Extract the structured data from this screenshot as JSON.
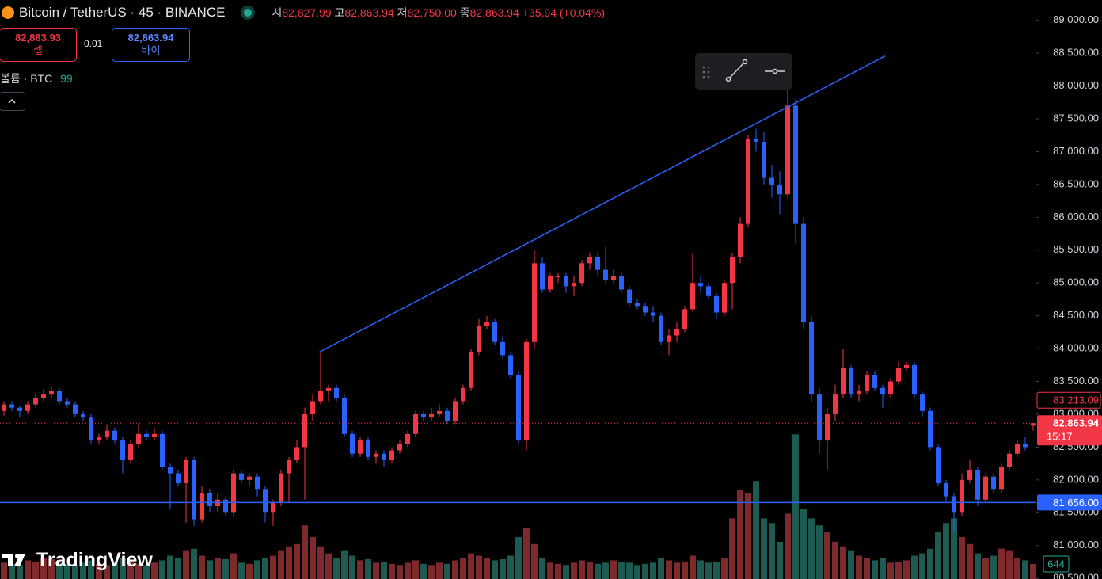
{
  "header": {
    "symbol": "Bitcoin / TetherUS · 45 · BINANCE",
    "open_label": "시",
    "open": "82,827.99",
    "high_label": "고",
    "high": "82,863.94",
    "low_label": "저",
    "low": "82,750.00",
    "close_label": "종",
    "close": "82,863.94",
    "change": "+35.94 (+0.04%)",
    "sell_price": "82,863.93",
    "sell_label": "셀",
    "spread": "0.01",
    "buy_price": "82,863.94",
    "buy_label": "바이",
    "volume_label": "볼륨 · BTC",
    "volume_length": "99",
    "logo": "TradingView"
  },
  "chart_data": {
    "type": "candlestick",
    "up_color": "#f23645",
    "down_color": "#2962ff",
    "volume_up_color": "#7e2a2c",
    "volume_down_color": "#1d5a52",
    "xlim": [
      -0.5,
      130.3
    ],
    "ylim": [
      80490,
      89310
    ],
    "volume_lim": [
      0,
      24800
    ],
    "yticks": [
      {
        "value": 80500,
        "label": "80,500.00"
      },
      {
        "value": 81000,
        "label": "81,000.00"
      },
      {
        "value": 81500,
        "label": "81,500.00"
      },
      {
        "value": 82000,
        "label": "82,000.00"
      },
      {
        "value": 82500,
        "label": "82,500.00"
      },
      {
        "value": 83000,
        "label": "83,000.00"
      },
      {
        "value": 83500,
        "label": "83,500.00"
      },
      {
        "value": 84000,
        "label": "84,000.00"
      },
      {
        "value": 84500,
        "label": "84,500.00"
      },
      {
        "value": 85000,
        "label": "85,000.00"
      },
      {
        "value": 85500,
        "label": "85,500.00"
      },
      {
        "value": 86000,
        "label": "86,000.00"
      },
      {
        "value": 86500,
        "label": "86,500.00"
      },
      {
        "value": 87000,
        "label": "87,000.00"
      },
      {
        "value": 87500,
        "label": "87,500.00"
      },
      {
        "value": 88000,
        "label": "88,000.00"
      },
      {
        "value": 88500,
        "label": "88,500.00"
      },
      {
        "value": 89000,
        "label": "89,000.00"
      }
    ],
    "horizontal_line": {
      "value": 81656,
      "label": "81,656.00",
      "color": "#2962ff"
    },
    "trendline": {
      "x": [
        39.8,
        111.3
      ],
      "y": [
        83944,
        88457
      ],
      "color": "#2962ff"
    },
    "price_marker": {
      "value": 83213.09,
      "label": "83,213.09"
    },
    "last_price": {
      "value": 82863.94,
      "label": "82,863.94",
      "countdown": "15:17"
    },
    "ohlc": [
      [
        83050,
        83200,
        82980,
        83150
      ],
      [
        83150,
        83200,
        83050,
        83100
      ],
      [
        83100,
        83120,
        82950,
        83050
      ],
      [
        83050,
        83200,
        83000,
        83150
      ],
      [
        83150,
        83300,
        83100,
        83250
      ],
      [
        83250,
        83380,
        83200,
        83300
      ],
      [
        83300,
        83420,
        83250,
        83350
      ],
      [
        83350,
        83400,
        83150,
        83200
      ],
      [
        83200,
        83250,
        83100,
        83150
      ],
      [
        83150,
        83200,
        82950,
        83000
      ],
      [
        83000,
        83050,
        82900,
        82950
      ],
      [
        82950,
        83000,
        82550,
        82600
      ],
      [
        82600,
        82700,
        82550,
        82650
      ],
      [
        82650,
        82850,
        82600,
        82750
      ],
      [
        82750,
        82800,
        82550,
        82600
      ],
      [
        82600,
        82650,
        82100,
        82300
      ],
      [
        82300,
        82600,
        82250,
        82550
      ],
      [
        82550,
        82850,
        82500,
        82700
      ],
      [
        82700,
        82750,
        82600,
        82650
      ],
      [
        82650,
        82800,
        82600,
        82700
      ],
      [
        82700,
        82750,
        82150,
        82200
      ],
      [
        82200,
        82250,
        81550,
        82100
      ],
      [
        82100,
        82150,
        81900,
        81950
      ],
      [
        81950,
        82350,
        81350,
        82300
      ],
      [
        82300,
        82350,
        81300,
        81400
      ],
      [
        81400,
        81900,
        81350,
        81800
      ],
      [
        81800,
        81850,
        81500,
        81600
      ],
      [
        81600,
        81800,
        81500,
        81700
      ],
      [
        81700,
        81750,
        81450,
        81500
      ],
      [
        81500,
        82150,
        81450,
        82100
      ],
      [
        82100,
        82150,
        81950,
        82000
      ],
      [
        82000,
        82100,
        81900,
        82050
      ],
      [
        82050,
        82100,
        81750,
        81850
      ],
      [
        81850,
        81900,
        81350,
        81500
      ],
      [
        81500,
        81700,
        81300,
        81650
      ],
      [
        81650,
        82150,
        81600,
        82100
      ],
      [
        82100,
        82350,
        81650,
        82300
      ],
      [
        82300,
        82600,
        82250,
        82500
      ],
      [
        82500,
        83100,
        81700,
        83000
      ],
      [
        83000,
        83300,
        82900,
        83200
      ],
      [
        83200,
        83950,
        83150,
        83350
      ],
      [
        83350,
        83450,
        83200,
        83400
      ],
      [
        83400,
        83450,
        83200,
        83250
      ],
      [
        83250,
        83300,
        82650,
        82700
      ],
      [
        82700,
        82750,
        82350,
        82400
      ],
      [
        82400,
        82650,
        82350,
        82600
      ],
      [
        82600,
        82650,
        82300,
        82350
      ],
      [
        82350,
        82450,
        82250,
        82400
      ],
      [
        82400,
        82450,
        82200,
        82300
      ],
      [
        82300,
        82500,
        82250,
        82450
      ],
      [
        82450,
        82600,
        82400,
        82550
      ],
      [
        82550,
        82750,
        82500,
        82700
      ],
      [
        82700,
        83050,
        82650,
        83000
      ],
      [
        83000,
        83050,
        82900,
        82950
      ],
      [
        82950,
        83100,
        82900,
        83000
      ],
      [
        83000,
        83150,
        82950,
        83050
      ],
      [
        83050,
        83100,
        82850,
        82900
      ],
      [
        82900,
        83250,
        82850,
        83200
      ],
      [
        83200,
        83450,
        83150,
        83400
      ],
      [
        83400,
        84000,
        83350,
        83950
      ],
      [
        83950,
        84450,
        83900,
        84350
      ],
      [
        84350,
        84500,
        84300,
        84400
      ],
      [
        84400,
        84450,
        84050,
        84100
      ],
      [
        84100,
        84200,
        83850,
        83900
      ],
      [
        83900,
        83950,
        83550,
        83600
      ],
      [
        83600,
        83650,
        82550,
        82600
      ],
      [
        82600,
        84150,
        82450,
        84100
      ],
      [
        84100,
        85500,
        84000,
        85300
      ],
      [
        85300,
        85400,
        84850,
        84900
      ],
      [
        84900,
        85150,
        84850,
        85100
      ],
      [
        85100,
        85150,
        85000,
        85100
      ],
      [
        85100,
        85150,
        84850,
        84950
      ],
      [
        84950,
        85100,
        84800,
        85000
      ],
      [
        85000,
        85350,
        84950,
        85300
      ],
      [
        85300,
        85450,
        85200,
        85400
      ],
      [
        85400,
        85450,
        85100,
        85200
      ],
      [
        85200,
        85550,
        85000,
        85050
      ],
      [
        85050,
        85200,
        85000,
        85100
      ],
      [
        85100,
        85150,
        84850,
        84900
      ],
      [
        84900,
        84950,
        84650,
        84700
      ],
      [
        84700,
        84750,
        84600,
        84650
      ],
      [
        84650,
        84700,
        84500,
        84550
      ],
      [
        84550,
        84650,
        84400,
        84500
      ],
      [
        84500,
        84550,
        84050,
        84100
      ],
      [
        84100,
        84300,
        83900,
        84200
      ],
      [
        84200,
        84400,
        84100,
        84300
      ],
      [
        84300,
        84650,
        84250,
        84600
      ],
      [
        84600,
        85450,
        84550,
        85000
      ],
      [
        85000,
        85100,
        84850,
        84950
      ],
      [
        84950,
        85000,
        84750,
        84800
      ],
      [
        84800,
        84850,
        84450,
        84550
      ],
      [
        84550,
        85050,
        84500,
        85000
      ],
      [
        85000,
        85450,
        84600,
        85400
      ],
      [
        85400,
        86000,
        85300,
        85900
      ],
      [
        85900,
        87250,
        85850,
        87200
      ],
      [
        87200,
        87350,
        87000,
        87150
      ],
      [
        87150,
        87300,
        86500,
        86600
      ],
      [
        86600,
        86800,
        86300,
        86500
      ],
      [
        86500,
        86700,
        86050,
        86350
      ],
      [
        86350,
        88000,
        86300,
        87700
      ],
      [
        87700,
        87800,
        85600,
        85900
      ],
      [
        85900,
        86000,
        84300,
        84400
      ],
      [
        84400,
        84500,
        83200,
        83300
      ],
      [
        83300,
        83400,
        82400,
        82600
      ],
      [
        82600,
        83100,
        82150,
        83000
      ],
      [
        83000,
        83450,
        82900,
        83300
      ],
      [
        83300,
        84000,
        83250,
        83700
      ],
      [
        83700,
        83750,
        83250,
        83300
      ],
      [
        83300,
        83450,
        83200,
        83350
      ],
      [
        83350,
        83650,
        83300,
        83600
      ],
      [
        83600,
        83650,
        83350,
        83400
      ],
      [
        83400,
        83450,
        83100,
        83300
      ],
      [
        83300,
        83550,
        83250,
        83500
      ],
      [
        83500,
        83800,
        83450,
        83700
      ],
      [
        83700,
        83800,
        83650,
        83750
      ],
      [
        83750,
        83800,
        83250,
        83300
      ],
      [
        83300,
        83350,
        82950,
        83050
      ],
      [
        83050,
        83100,
        82450,
        82500
      ],
      [
        82500,
        82550,
        81900,
        81950
      ],
      [
        81950,
        82000,
        81650,
        81750
      ],
      [
        81750,
        81800,
        81200,
        81500
      ],
      [
        81500,
        82100,
        81450,
        82000
      ],
      [
        82000,
        82300,
        81950,
        82150
      ],
      [
        82150,
        82200,
        81600,
        81700
      ],
      [
        81700,
        82100,
        81650,
        82050
      ],
      [
        82050,
        82100,
        81800,
        81850
      ],
      [
        81850,
        82250,
        81800,
        82200
      ],
      [
        82200,
        82450,
        82150,
        82400
      ],
      [
        82400,
        82600,
        82350,
        82550
      ],
      [
        82550,
        82650,
        82450,
        82500
      ],
      [
        82827.99,
        82863.94,
        82750,
        82863.94
      ]
    ],
    "volume": [
      700,
      650,
      600,
      800,
      750,
      900,
      850,
      700,
      650,
      600,
      700,
      800,
      650,
      600,
      700,
      900,
      750,
      650,
      600,
      700,
      800,
      1000,
      900,
      1200,
      1300,
      1000,
      800,
      900,
      850,
      1100,
      700,
      650,
      800,
      900,
      1000,
      1200,
      1400,
      1500,
      2300,
      1800,
      1400,
      1100,
      900,
      1200,
      1000,
      800,
      850,
      700,
      750,
      650,
      600,
      700,
      800,
      650,
      600,
      700,
      650,
      800,
      900,
      1100,
      1000,
      900,
      800,
      850,
      1000,
      1800,
      2200,
      1500,
      900,
      700,
      650,
      600,
      700,
      800,
      750,
      650,
      700,
      800,
      750,
      700,
      600,
      650,
      700,
      900,
      800,
      700,
      750,
      1000,
      800,
      700,
      750,
      900,
      2600,
      3800,
      3700,
      4200,
      2600,
      2400,
      1600,
      2800,
      6200,
      3000,
      2600,
      2300,
      2000,
      1600,
      1400,
      1200,
      1000,
      900,
      800,
      900,
      700,
      750,
      800,
      1000,
      1100,
      1300,
      2000,
      2400,
      2600,
      1800,
      1500,
      1100,
      900,
      1000,
      1300,
      1200,
      900,
      800,
      644
    ]
  }
}
